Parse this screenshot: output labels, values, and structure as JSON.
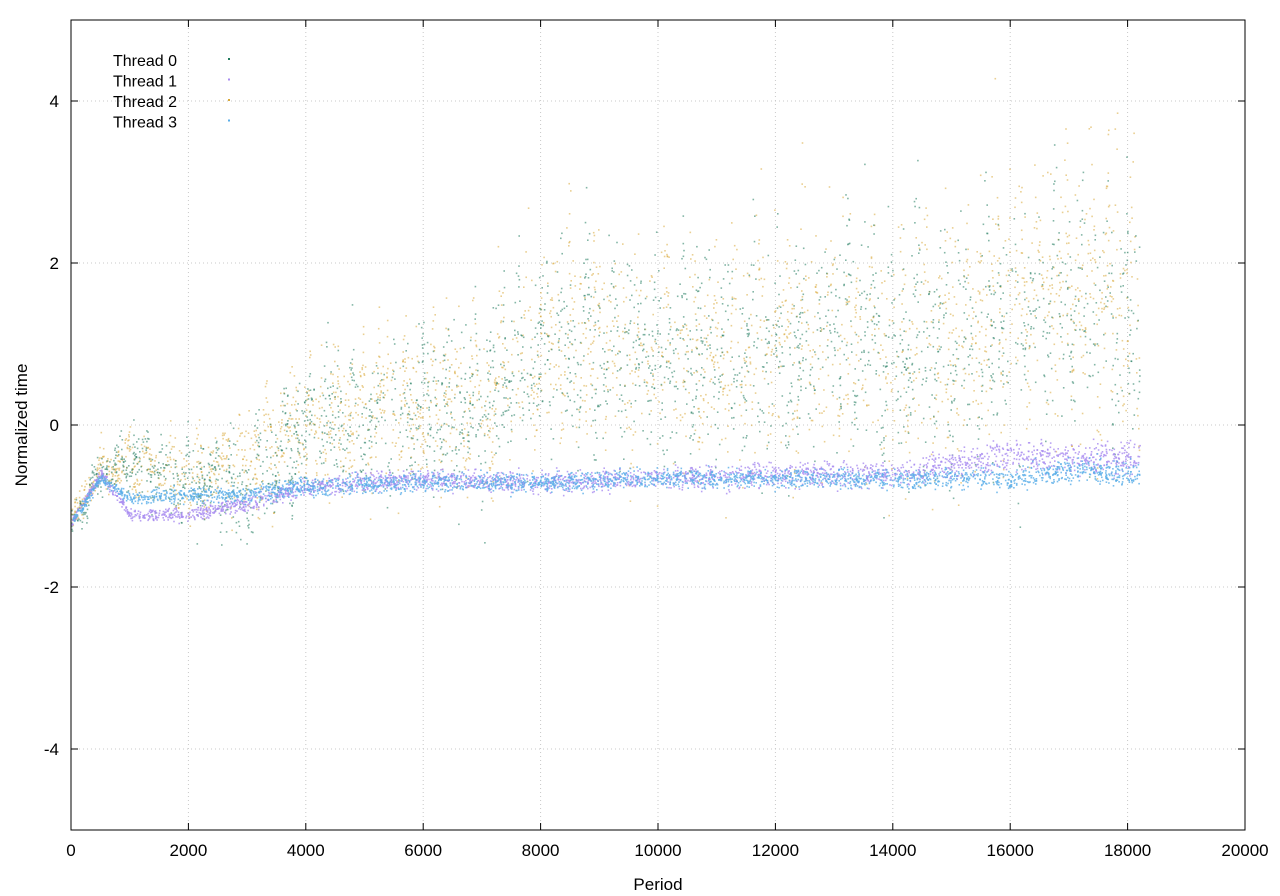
{
  "chart_data": {
    "type": "scatter",
    "title": "",
    "xlabel": "Period",
    "ylabel": "Normalized time",
    "xlim": [
      0,
      20000
    ],
    "ylim": [
      -5,
      5
    ],
    "xticks": [
      0,
      2000,
      4000,
      6000,
      8000,
      10000,
      12000,
      14000,
      16000,
      18000,
      20000
    ],
    "yticks": [
      -4,
      -2,
      0,
      2,
      4
    ],
    "grid": true,
    "legend_position": "top-left",
    "series": [
      {
        "name": "Thread 0",
        "color": "#1f7a5c",
        "trend": [
          [
            0,
            -1.2
          ],
          [
            500,
            -0.6
          ],
          [
            1000,
            -0.4
          ],
          [
            2000,
            -0.7
          ],
          [
            3000,
            -0.8
          ],
          [
            4000,
            0.0
          ],
          [
            5000,
            0.1
          ],
          [
            6000,
            0.2
          ],
          [
            7000,
            0.3
          ],
          [
            8000,
            1.0
          ],
          [
            9000,
            1.0
          ],
          [
            10000,
            0.9
          ],
          [
            11000,
            0.9
          ],
          [
            12000,
            0.8
          ],
          [
            13000,
            1.2
          ],
          [
            14000,
            1.0
          ],
          [
            15000,
            1.0
          ],
          [
            16000,
            1.3
          ],
          [
            17000,
            1.4
          ],
          [
            18000,
            1.2
          ],
          [
            18200,
            1.0
          ]
        ],
        "spread": [
          [
            0,
            0.15
          ],
          [
            3000,
            0.5
          ],
          [
            8000,
            0.9
          ],
          [
            12000,
            1.0
          ],
          [
            18200,
            1.3
          ]
        ]
      },
      {
        "name": "Thread 1",
        "color": "#a98cf0",
        "trend": [
          [
            0,
            -1.2
          ],
          [
            500,
            -0.6
          ],
          [
            1000,
            -1.1
          ],
          [
            2000,
            -1.1
          ],
          [
            3000,
            -0.95
          ],
          [
            4000,
            -0.75
          ],
          [
            6000,
            -0.65
          ],
          [
            8000,
            -0.7
          ],
          [
            10000,
            -0.65
          ],
          [
            12000,
            -0.6
          ],
          [
            14000,
            -0.6
          ],
          [
            15000,
            -0.5
          ],
          [
            16000,
            -0.35
          ],
          [
            17000,
            -0.4
          ],
          [
            18200,
            -0.4
          ]
        ],
        "spread": [
          [
            0,
            0.05
          ],
          [
            3000,
            0.1
          ],
          [
            10000,
            0.12
          ],
          [
            14000,
            0.15
          ],
          [
            18200,
            0.2
          ]
        ]
      },
      {
        "name": "Thread 2",
        "color": "#d8a838",
        "trend": [
          [
            0,
            -1.15
          ],
          [
            500,
            -0.55
          ],
          [
            1000,
            -0.45
          ],
          [
            2000,
            -0.65
          ],
          [
            3000,
            -0.5
          ],
          [
            4000,
            0.0
          ],
          [
            5000,
            0.15
          ],
          [
            6000,
            0.3
          ],
          [
            7000,
            0.4
          ],
          [
            8000,
            1.0
          ],
          [
            9000,
            1.0
          ],
          [
            10000,
            0.8
          ],
          [
            11000,
            1.0
          ],
          [
            12000,
            1.0
          ],
          [
            13000,
            1.0
          ],
          [
            14000,
            1.0
          ],
          [
            15000,
            1.0
          ],
          [
            16000,
            1.7
          ],
          [
            17000,
            1.8
          ],
          [
            18000,
            1.6
          ],
          [
            18200,
            0.8
          ]
        ],
        "spread": [
          [
            0,
            0.15
          ],
          [
            3000,
            0.5
          ],
          [
            8000,
            0.9
          ],
          [
            12000,
            1.1
          ],
          [
            18200,
            1.4
          ]
        ]
      },
      {
        "name": "Thread 3",
        "color": "#5aaee8",
        "trend": [
          [
            0,
            -1.2
          ],
          [
            500,
            -0.65
          ],
          [
            1000,
            -0.9
          ],
          [
            2000,
            -0.85
          ],
          [
            3000,
            -0.85
          ],
          [
            4000,
            -0.75
          ],
          [
            6000,
            -0.7
          ],
          [
            8000,
            -0.7
          ],
          [
            10000,
            -0.65
          ],
          [
            12000,
            -0.65
          ],
          [
            14000,
            -0.65
          ],
          [
            16000,
            -0.65
          ],
          [
            17000,
            -0.55
          ],
          [
            18200,
            -0.6
          ]
        ],
        "spread": [
          [
            0,
            0.05
          ],
          [
            3000,
            0.1
          ],
          [
            10000,
            0.1
          ],
          [
            16000,
            0.12
          ],
          [
            18200,
            0.15
          ]
        ]
      }
    ]
  }
}
